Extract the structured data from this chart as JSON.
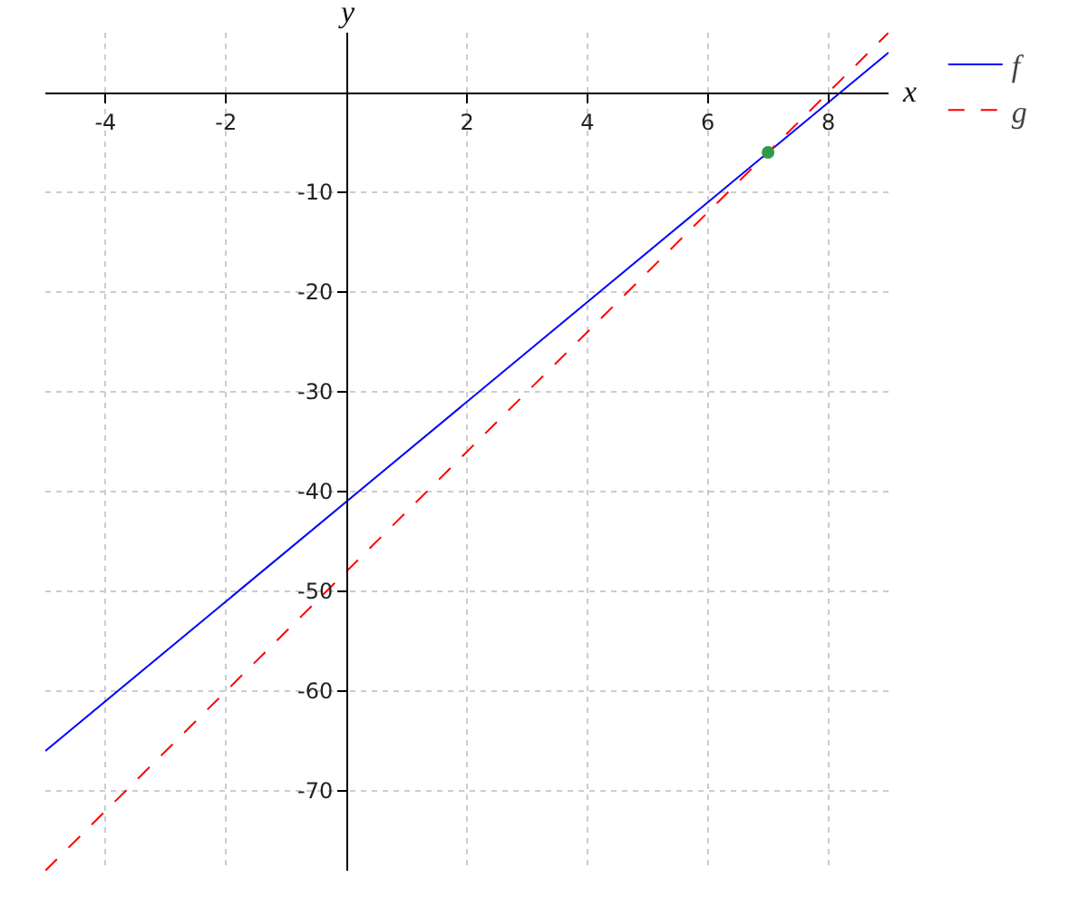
{
  "chart_data": {
    "type": "line",
    "xlabel": "x",
    "ylabel": "y",
    "xlim": [
      -5,
      9
    ],
    "ylim": [
      -78,
      6
    ],
    "xticks": [
      -4,
      -2,
      2,
      4,
      6,
      8
    ],
    "yticks": [
      -10,
      -20,
      -30,
      -40,
      -50,
      -60,
      -70
    ],
    "grid": true,
    "legend": "top right",
    "series": [
      {
        "name": "f",
        "color": "#0000ff",
        "x": [
          -5,
          9
        ],
        "values": [
          -66,
          4
        ],
        "line_style": "solid"
      },
      {
        "name": "g",
        "color": "#ff0000",
        "x": [
          -5,
          9
        ],
        "values": [
          -78,
          6
        ],
        "line_style": "dashed"
      },
      {
        "type": "scatter",
        "color": "#2e9a4a",
        "x": [
          7
        ],
        "values": [
          -6
        ],
        "marker": "circle"
      }
    ]
  }
}
